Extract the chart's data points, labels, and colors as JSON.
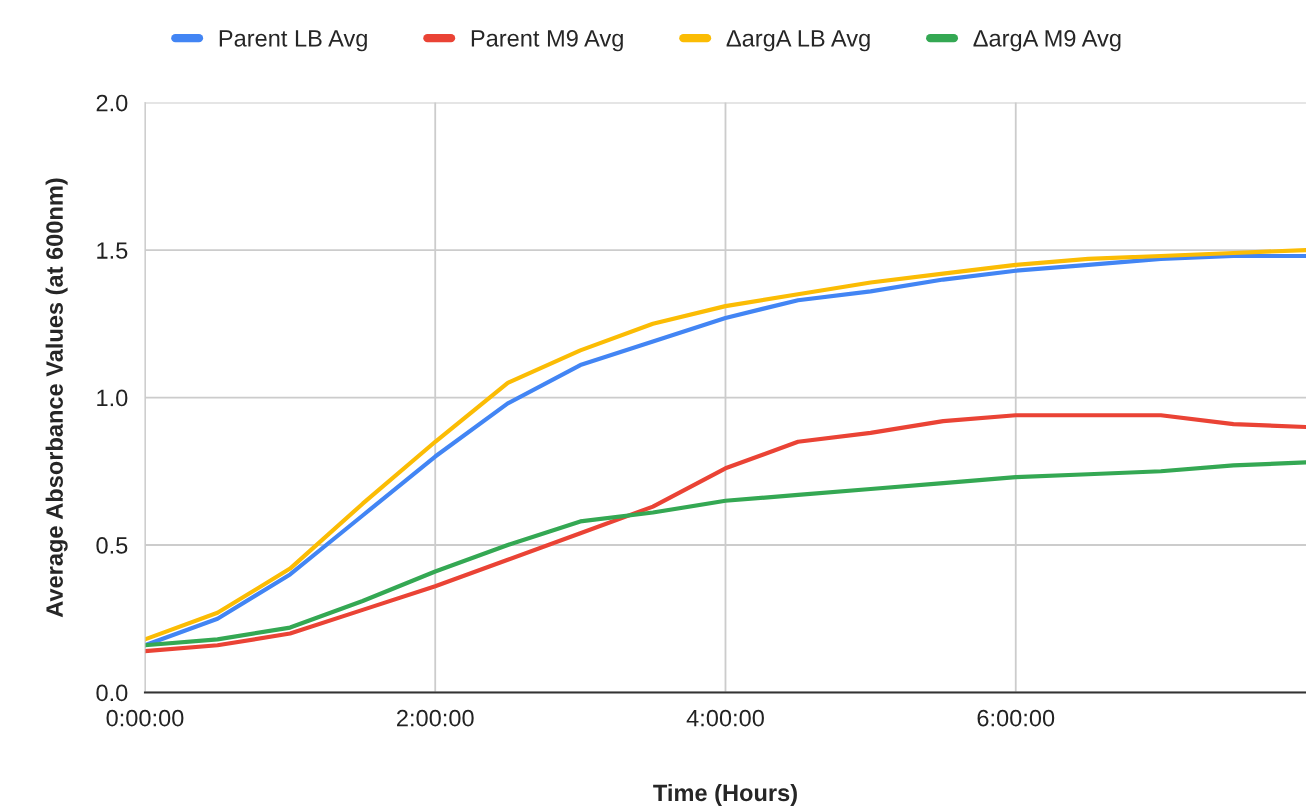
{
  "chart_data": {
    "type": "line",
    "xlabel": "Time (Hours)",
    "ylabel": "Average Absorbance Values (at 600nm)",
    "x": [
      0,
      0.5,
      1,
      1.5,
      2,
      2.5,
      3,
      3.5,
      4,
      4.5,
      5,
      5.5,
      6,
      6.5,
      7,
      7.5,
      8
    ],
    "series": [
      {
        "name": "Parent LB Avg",
        "color": "#4285f4",
        "values": [
          0.16,
          0.25,
          0.4,
          0.6,
          0.8,
          0.98,
          1.11,
          1.19,
          1.27,
          1.33,
          1.36,
          1.4,
          1.43,
          1.45,
          1.47,
          1.48,
          1.48
        ]
      },
      {
        "name": "Parent M9 Avg",
        "color": "#ea4335",
        "values": [
          0.14,
          0.16,
          0.2,
          0.28,
          0.36,
          0.45,
          0.54,
          0.63,
          0.76,
          0.85,
          0.88,
          0.92,
          0.94,
          0.94,
          0.94,
          0.91,
          0.9
        ]
      },
      {
        "name": "ΔargA LB Avg",
        "color": "#fbbc04",
        "values": [
          0.18,
          0.27,
          0.42,
          0.64,
          0.85,
          1.05,
          1.16,
          1.25,
          1.31,
          1.35,
          1.39,
          1.42,
          1.45,
          1.47,
          1.48,
          1.49,
          1.5
        ]
      },
      {
        "name": "ΔargA M9 Avg",
        "color": "#34a853",
        "values": [
          0.16,
          0.18,
          0.22,
          0.31,
          0.41,
          0.5,
          0.58,
          0.61,
          0.65,
          0.67,
          0.69,
          0.71,
          0.73,
          0.74,
          0.75,
          0.77,
          0.78
        ]
      }
    ],
    "xlim": [
      0,
      8
    ],
    "xticks": [
      {
        "value": 0,
        "label": "0:00:00"
      },
      {
        "value": 2,
        "label": "2:00:00"
      },
      {
        "value": 4,
        "label": "4:00:00"
      },
      {
        "value": 6,
        "label": "6:00:00"
      }
    ],
    "ylim": [
      0,
      2
    ],
    "yticks": [
      {
        "value": 0,
        "label": "0.0"
      },
      {
        "value": 0.5,
        "label": "0.5"
      },
      {
        "value": 1,
        "label": "1.0"
      },
      {
        "value": 1.5,
        "label": "1.5"
      },
      {
        "value": 2,
        "label": "2.0"
      }
    ],
    "grid": true,
    "legend": "top",
    "marker": "none",
    "line_style": "solid"
  }
}
